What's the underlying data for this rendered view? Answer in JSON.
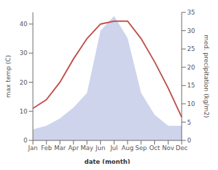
{
  "chart_data": {
    "type": "line",
    "xlabel": "date (month)",
    "ylabel": "max temp (C)",
    "y2label": "med. precipitation (kg/m2)",
    "categories": [
      "Jan",
      "Feb",
      "Mar",
      "Apr",
      "May",
      "Jun",
      "Jul",
      "Aug",
      "Sep",
      "Oct",
      "Nov",
      "Dec"
    ],
    "series": [
      {
        "type": "area",
        "axis": "y2",
        "color": "#c5cce8",
        "values": [
          3,
          4,
          6,
          9,
          13,
          30,
          34,
          28,
          13,
          7,
          4,
          4
        ]
      },
      {
        "type": "line",
        "color": "#c0504d",
        "values": [
          11,
          14,
          20,
          28,
          35,
          40,
          41,
          41,
          35,
          27,
          18,
          8
        ]
      }
    ],
    "ylim": [
      0,
      44
    ],
    "yticks": [
      0,
      10,
      20,
      30,
      40
    ],
    "y2lim": [
      0,
      35
    ],
    "y2ticks": [
      0,
      5,
      10,
      15,
      20,
      25,
      30,
      35
    ],
    "grid": false
  }
}
